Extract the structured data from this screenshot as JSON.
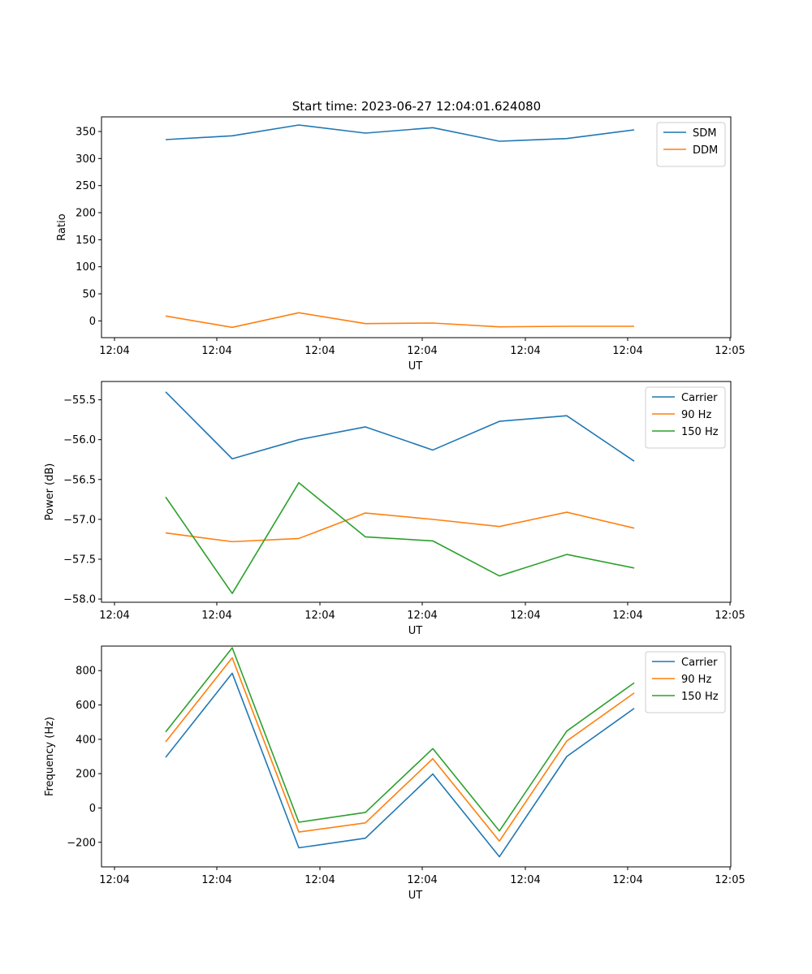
{
  "figure": {
    "title": "Start time: 2023-06-27 12:04:01.624080"
  },
  "chart_data": [
    {
      "type": "line",
      "title": "Start time: 2023-06-27 12:04:01.624080",
      "xlabel": "UT",
      "ylabel": "Ratio",
      "x_tick_labels": [
        "12:04",
        "12:04",
        "12:04",
        "12:04",
        "12:04",
        "12:04",
        "12:05"
      ],
      "y_ticks": [
        0,
        50,
        100,
        150,
        200,
        250,
        300,
        350
      ],
      "ylim": [
        -31,
        377
      ],
      "legend_position": "top-right",
      "grid": false,
      "series": [
        {
          "name": "SDM",
          "color": "#1f77b4",
          "values": [
            335,
            342,
            362,
            347,
            357,
            332,
            337,
            353
          ]
        },
        {
          "name": "DDM",
          "color": "#ff7f0e",
          "values": [
            9,
            -12,
            15,
            -5,
            -4,
            -11,
            -10,
            -10
          ]
        }
      ]
    },
    {
      "type": "line",
      "title": "",
      "xlabel": "UT",
      "ylabel": "Power (dB)",
      "x_tick_labels": [
        "12:04",
        "12:04",
        "12:04",
        "12:04",
        "12:04",
        "12:04",
        "12:05"
      ],
      "y_ticks": [
        -58.0,
        -57.5,
        -57.0,
        -56.5,
        -56.0,
        -55.5
      ],
      "y_tick_labels": [
        "−58.0",
        "−57.5",
        "−57.0",
        "−56.5",
        "−56.0",
        "−55.5"
      ],
      "ylim": [
        -58.04,
        -55.27
      ],
      "legend_position": "top-right",
      "grid": false,
      "series": [
        {
          "name": "Carrier",
          "color": "#1f77b4",
          "values": [
            -55.4,
            -56.24,
            -56.0,
            -55.84,
            -56.13,
            -55.77,
            -55.7,
            -56.27
          ]
        },
        {
          "name": "90 Hz",
          "color": "#ff7f0e",
          "values": [
            -57.17,
            -57.28,
            -57.24,
            -56.92,
            -57.0,
            -57.09,
            -56.91,
            -57.11
          ]
        },
        {
          "name": "150 Hz",
          "color": "#2ca02c",
          "values": [
            -56.72,
            -57.93,
            -56.54,
            -57.22,
            -57.27,
            -57.71,
            -57.44,
            -57.61
          ]
        }
      ]
    },
    {
      "type": "line",
      "title": "",
      "xlabel": "UT",
      "ylabel": "Frequency (Hz)",
      "x_tick_labels": [
        "12:04",
        "12:04",
        "12:04",
        "12:04",
        "12:04",
        "12:04",
        "12:05"
      ],
      "y_ticks": [
        -200,
        0,
        200,
        400,
        600,
        800
      ],
      "y_tick_labels": [
        "−200",
        "0",
        "200",
        "400",
        "600",
        "800"
      ],
      "ylim": [
        -343,
        943
      ],
      "legend_position": "top-right",
      "grid": false,
      "series": [
        {
          "name": "Carrier",
          "color": "#1f77b4",
          "values": [
            295,
            785,
            -232,
            -176,
            198,
            -284,
            300,
            580
          ]
        },
        {
          "name": "90 Hz",
          "color": "#ff7f0e",
          "values": [
            385,
            875,
            -140,
            -87,
            287,
            -193,
            390,
            670
          ]
        },
        {
          "name": "150 Hz",
          "color": "#2ca02c",
          "values": [
            443,
            933,
            -83,
            -26,
            346,
            -134,
            448,
            729
          ]
        }
      ]
    }
  ]
}
